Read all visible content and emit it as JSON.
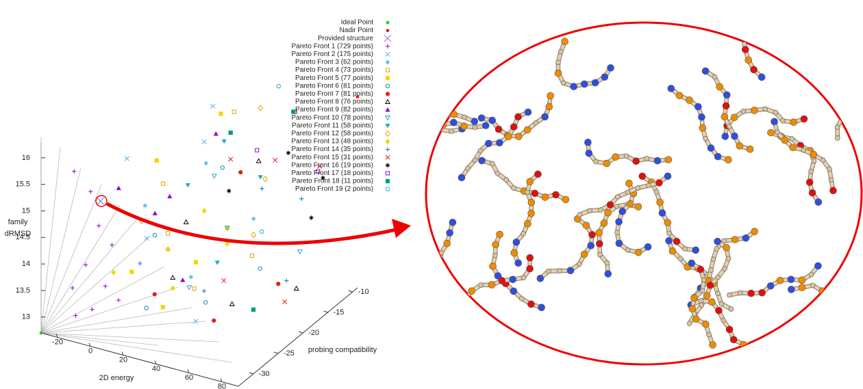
{
  "chart_data": {
    "type": "scatter3d",
    "xlabel": "2D energy",
    "ylabel": "probing compatibility",
    "zlabel": [
      "family",
      "dRMSD"
    ],
    "xlim": [
      -30,
      90
    ],
    "ylim": [
      -33,
      -9
    ],
    "zlim": [
      12.7,
      16.3
    ],
    "xticks": [
      -20,
      0,
      20,
      40,
      60,
      80
    ],
    "yticks": [
      -30,
      -25,
      -20,
      -15,
      -10
    ],
    "zticks": [
      13,
      13.5,
      14,
      14.5,
      15,
      15.5,
      16
    ],
    "series": [
      {
        "name": "Ideal Point",
        "color": "#22cc22",
        "marker": "dot",
        "x": [
          -30
        ],
        "y": [
          -33
        ],
        "z": [
          12.7
        ]
      },
      {
        "name": "Nadir Point",
        "color": "#e51e10",
        "marker": "dot",
        "x": [
          90
        ],
        "y": [
          -9
        ],
        "z": [
          16.3
        ]
      },
      {
        "name": "Provided structure",
        "color": "#7b68ee",
        "marker": "bigcross",
        "x": [
          -12
        ],
        "y": [
          -27
        ],
        "z": [
          14.87
        ]
      },
      {
        "name": "Pareto Front 1 (729 points)",
        "color": "#9400d3",
        "marker": "plus",
        "x": [
          -20,
          -15,
          -10,
          -5,
          0,
          -18,
          -8,
          5,
          -12,
          -25
        ],
        "y": [
          -30,
          -29,
          -28,
          -31,
          -30,
          -27,
          -26,
          -29,
          -32,
          -28
        ],
        "z": [
          13.4,
          13.8,
          14.5,
          13.2,
          13.6,
          15.0,
          14.0,
          13.3,
          13.1,
          15.4
        ]
      },
      {
        "name": "Pareto Front 2 (175 points)",
        "color": "#56b4e9",
        "marker": "cross",
        "x": [
          10,
          30,
          55,
          -5,
          20
        ],
        "y": [
          -25,
          -20,
          -30,
          -24,
          -15
        ],
        "z": [
          14.2,
          15.8,
          13.4,
          15.5,
          16.0
        ]
      },
      {
        "name": "Pareto Front 3 (62 points)",
        "color": "#56b4e9",
        "marker": "star",
        "x": [
          0,
          25,
          40,
          15,
          60
        ],
        "y": [
          -22,
          -18,
          -26,
          -28,
          -20
        ],
        "z": [
          14.5,
          15.2,
          13.8,
          14.0,
          14.6
        ]
      },
      {
        "name": "Pareto Front 4 (73 points)",
        "color": "#e69f00",
        "marker": "square",
        "x": [
          5,
          30,
          45,
          20,
          65
        ],
        "y": [
          -20,
          -14,
          -27,
          -24,
          -22
        ],
        "z": [
          14.8,
          15.9,
          13.7,
          14.3,
          14.1
        ]
      },
      {
        "name": "Pareto Front 5 (77 points)",
        "color": "#f0d800",
        "marker": "square-filled",
        "x": [
          -5,
          25,
          40,
          10,
          50,
          35
        ],
        "y": [
          -18,
          -15,
          -25,
          -28,
          -22,
          -30
        ],
        "z": [
          15.0,
          15.9,
          14.0,
          13.8,
          14.5,
          13.5
        ]
      },
      {
        "name": "Pareto Front 6 (81 points)",
        "color": "#0a8fb0",
        "marker": "circle",
        "x": [
          15,
          35,
          55,
          70,
          25
        ],
        "y": [
          -25,
          -18,
          -28,
          -22,
          -30
        ],
        "z": [
          14.3,
          15.2,
          13.6,
          13.9,
          13.4
        ]
      },
      {
        "name": "Pareto Front 7 (81 points)",
        "color": "#e51e10",
        "marker": "circle-filled",
        "x": [
          20,
          40,
          60,
          75,
          30
        ],
        "y": [
          -24,
          -16,
          -28,
          -20,
          -30
        ],
        "z": [
          14.0,
          15.0,
          13.3,
          13.5,
          13.7
        ]
      },
      {
        "name": "Pareto Front 8 (76 points)",
        "color": "#000000",
        "marker": "triangle",
        "x": [
          25,
          45,
          65,
          80,
          35
        ],
        "y": [
          -22,
          -14,
          -26,
          -18,
          -28
        ],
        "z": [
          14.4,
          15.1,
          13.5,
          13.3,
          13.9
        ]
      },
      {
        "name": "Pareto Front 9 (82 points)",
        "color": "#9400d3",
        "marker": "triangle-filled",
        "x": [
          0,
          15,
          35,
          -10,
          25
        ],
        "y": [
          -20,
          -22,
          -26,
          -24,
          -16
        ],
        "z": [
          14.2,
          14.8,
          13.7,
          14.9,
          15.6
        ]
      },
      {
        "name": "Pareto Front 10 (78 points)",
        "color": "#20a8d0",
        "marker": "tri-down",
        "x": [
          30,
          50,
          70,
          45
        ],
        "y": [
          -18,
          -22,
          -14,
          -28
        ],
        "z": [
          15.0,
          14.5,
          13.6,
          13.8
        ]
      },
      {
        "name": "Pareto Front 11 (58 points)",
        "color": "#20a8d0",
        "marker": "tri-down-filled",
        "x": [
          30,
          20,
          50,
          40
        ],
        "y": [
          -16,
          -20,
          -24,
          -12
        ],
        "z": [
          15.5,
          14.9,
          14.0,
          14.6
        ]
      },
      {
        "name": "Pareto Front 12 (58 points)",
        "color": "#e69f00",
        "marker": "diamond",
        "x": [
          40,
          55,
          10,
          60
        ],
        "y": [
          -12,
          -16,
          -26,
          -20
        ],
        "z": [
          15.9,
          15.0,
          14.6,
          14.3
        ]
      },
      {
        "name": "Pareto Front 13 (48 points)",
        "color": "#f0d800",
        "marker": "diamond-filled",
        "x": [
          20,
          35,
          5,
          50,
          30
        ],
        "y": [
          -24,
          -28,
          -30,
          -22,
          -20
        ],
        "z": [
          14.0,
          13.7,
          13.9,
          14.2,
          14.5
        ]
      },
      {
        "name": "Pareto Front 14 (35 points)",
        "color": "#0072b2",
        "marker": "plus",
        "x": [
          50,
          65,
          80,
          45
        ],
        "y": [
          -15,
          -12,
          -20,
          -25
        ],
        "z": [
          14.7,
          14.4,
          13.6,
          13.5
        ]
      },
      {
        "name": "Pareto Front 15 (31 points)",
        "color": "#e51e10",
        "marker": "cross",
        "x": [
          55,
          70,
          85,
          60,
          40
        ],
        "y": [
          -14,
          -10,
          -22,
          -26,
          -18
        ],
        "z": [
          15.2,
          14.9,
          13.4,
          13.9,
          15.4
        ]
      },
      {
        "name": "Pareto Front 16 (19 points)",
        "color": "#000000",
        "marker": "star",
        "x": [
          60,
          75,
          45,
          80
        ],
        "y": [
          -13,
          -11,
          -20,
          -15
        ],
        "z": [
          15.3,
          14.8,
          15.0,
          14.4
        ]
      },
      {
        "name": "Pareto Front 17 (18 points)",
        "color": "#9400d3",
        "marker": "square",
        "x": [
          55,
          50,
          75
        ],
        "y": [
          -10,
          -16,
          -12
        ],
        "z": [
          15.8,
          15.5,
          15.0
        ]
      },
      {
        "name": "Pareto Front 18 (11 points)",
        "color": "#009e73",
        "marker": "square-filled",
        "x": [
          60,
          40,
          75
        ],
        "y": [
          -12,
          -18,
          -25
        ],
        "z": [
          16.0,
          15.9,
          13.4
        ]
      },
      {
        "name": "Pareto Front 19 (2 points)",
        "color": "#20a8d0",
        "marker": "circle",
        "x": [
          45,
          65
        ],
        "y": [
          -10,
          -20
        ],
        "z": [
          16.2,
          14.4
        ]
      }
    ]
  }
}
